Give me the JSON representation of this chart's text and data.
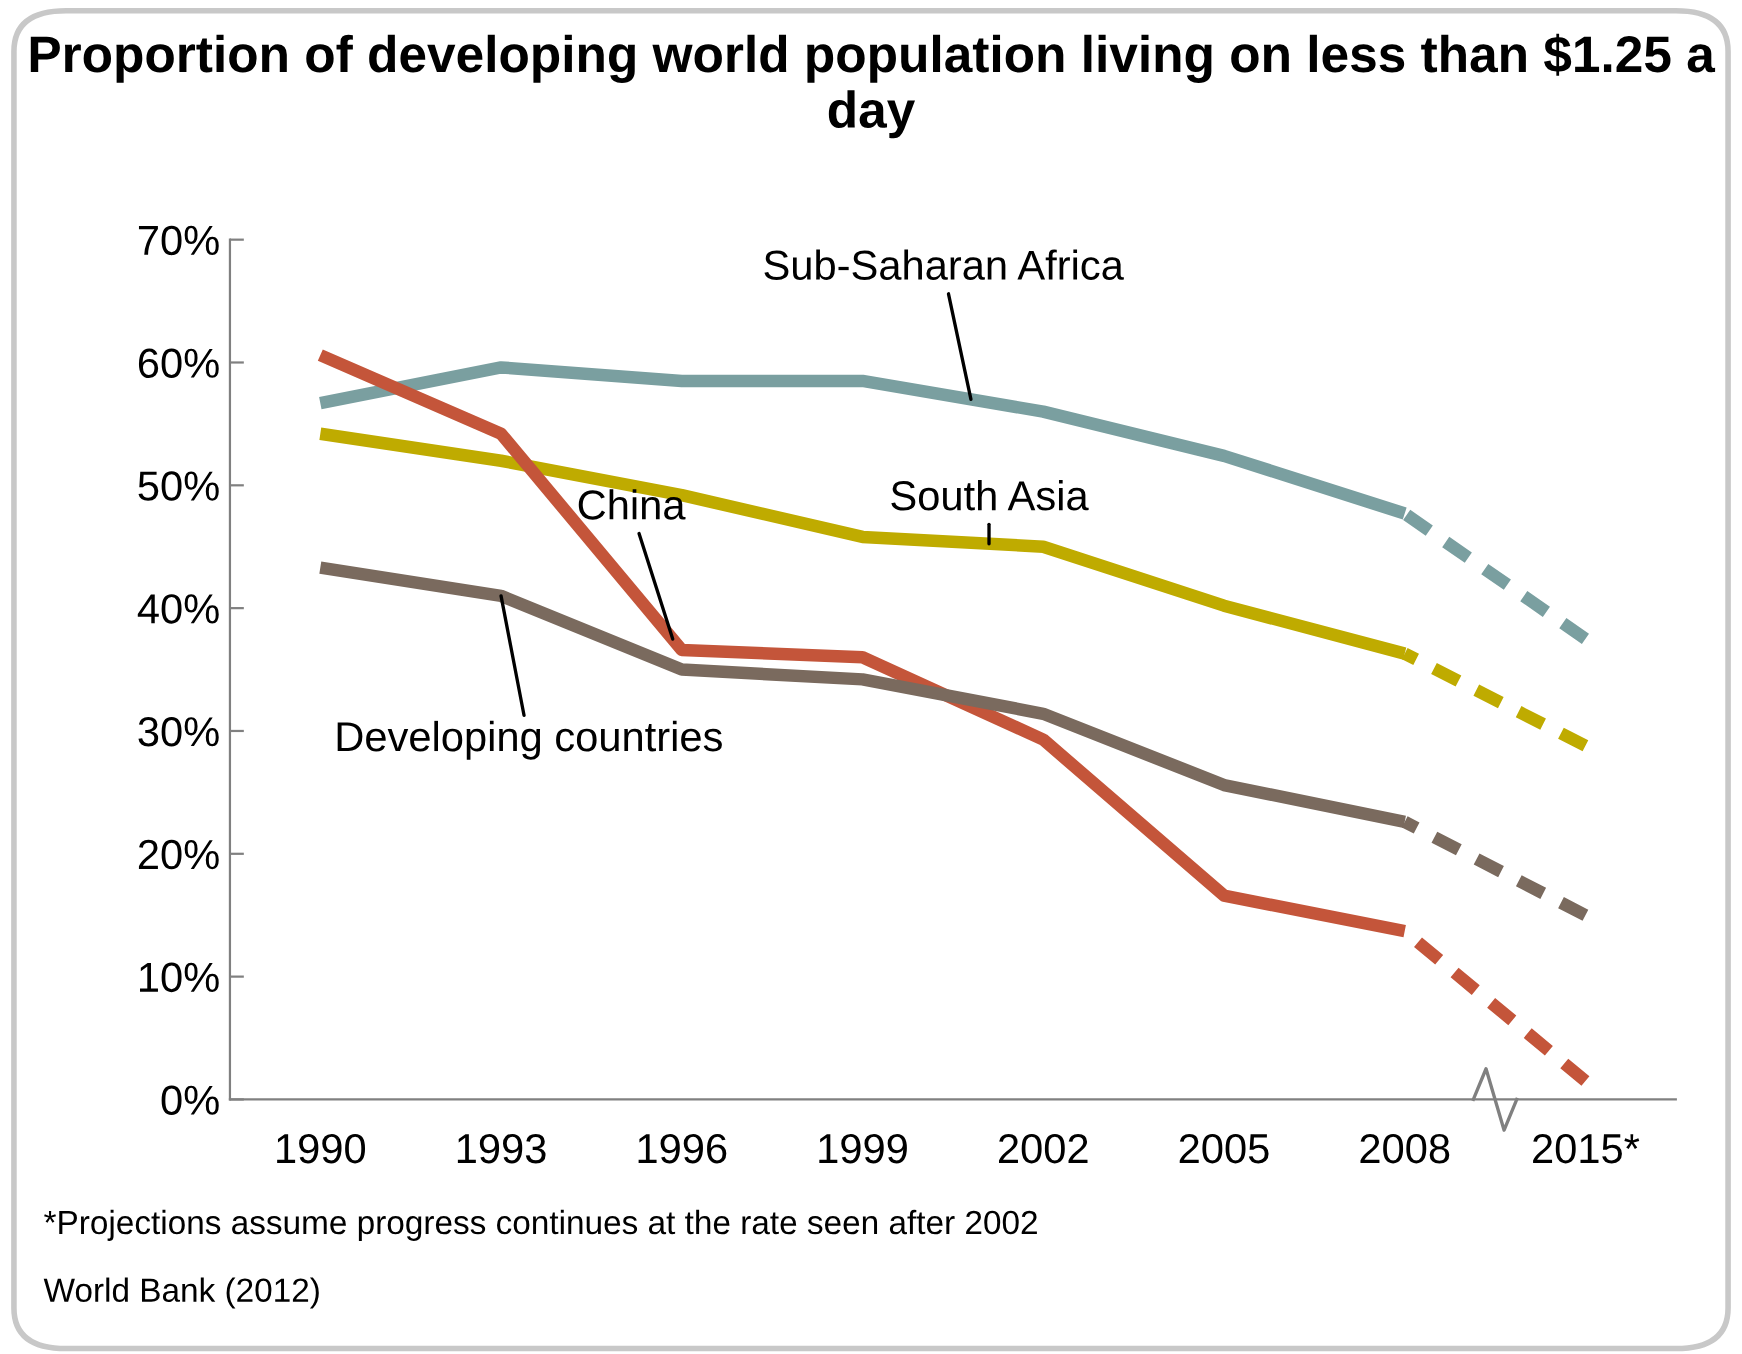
{
  "chart_data": {
    "type": "line",
    "title": "Proportion of developing world population living on less than $1.25 a day",
    "categories": [
      "1990",
      "1993",
      "1996",
      "1999",
      "2002",
      "2005",
      "2008",
      "2015*"
    ],
    "ylim": [
      0,
      70
    ],
    "yticks": [
      {
        "value": 0,
        "label": "0%"
      },
      {
        "value": 10,
        "label": "10%"
      },
      {
        "value": 20,
        "label": "20%"
      },
      {
        "value": 30,
        "label": "30%"
      },
      {
        "value": 40,
        "label": "40%"
      },
      {
        "value": 50,
        "label": "50%"
      },
      {
        "value": 60,
        "label": "60%"
      },
      {
        "value": 70,
        "label": "70%"
      }
    ],
    "grid": false,
    "legend": false,
    "marker": "none",
    "line_style": "solid",
    "series": [
      {
        "name": "Sub-Saharan Africa",
        "color": "#7a9fa0",
        "values": [
          56.7,
          59.6,
          58.5,
          58.5,
          56.0,
          52.4,
          47.7,
          null
        ]
      },
      {
        "name": "South Asia",
        "color": "#bfab00",
        "values": [
          54.2,
          52.0,
          49.2,
          45.8,
          45.0,
          40.2,
          36.3,
          null
        ]
      },
      {
        "name": "China",
        "color": "#c4553a",
        "values": [
          60.6,
          54.2,
          36.6,
          36.0,
          29.3,
          16.6,
          13.7,
          null
        ]
      },
      {
        "name": "Developing countries",
        "color": "#7a6a5e",
        "values": [
          43.3,
          41.0,
          35.0,
          34.2,
          31.4,
          25.6,
          22.6,
          null
        ]
      },
      {
        "color": "#7a9fa0",
        "line_style": "dashed",
        "values": [
          null,
          null,
          null,
          null,
          null,
          null,
          47.7,
          37.5
        ]
      },
      {
        "color": "#bfab00",
        "line_style": "dashed",
        "values": [
          null,
          null,
          null,
          null,
          null,
          null,
          36.3,
          28.8
        ]
      },
      {
        "color": "#c4553a",
        "line_style": "dashed",
        "values": [
          null,
          null,
          null,
          null,
          null,
          null,
          13.7,
          1.5
        ]
      },
      {
        "color": "#7a6a5e",
        "line_style": "dashed",
        "values": [
          null,
          null,
          null,
          null,
          null,
          null,
          22.6,
          15.0
        ]
      }
    ],
    "annotations": [
      "*Projections assume progress continues at the rate seen after 2002",
      "World Bank (2012)"
    ]
  }
}
